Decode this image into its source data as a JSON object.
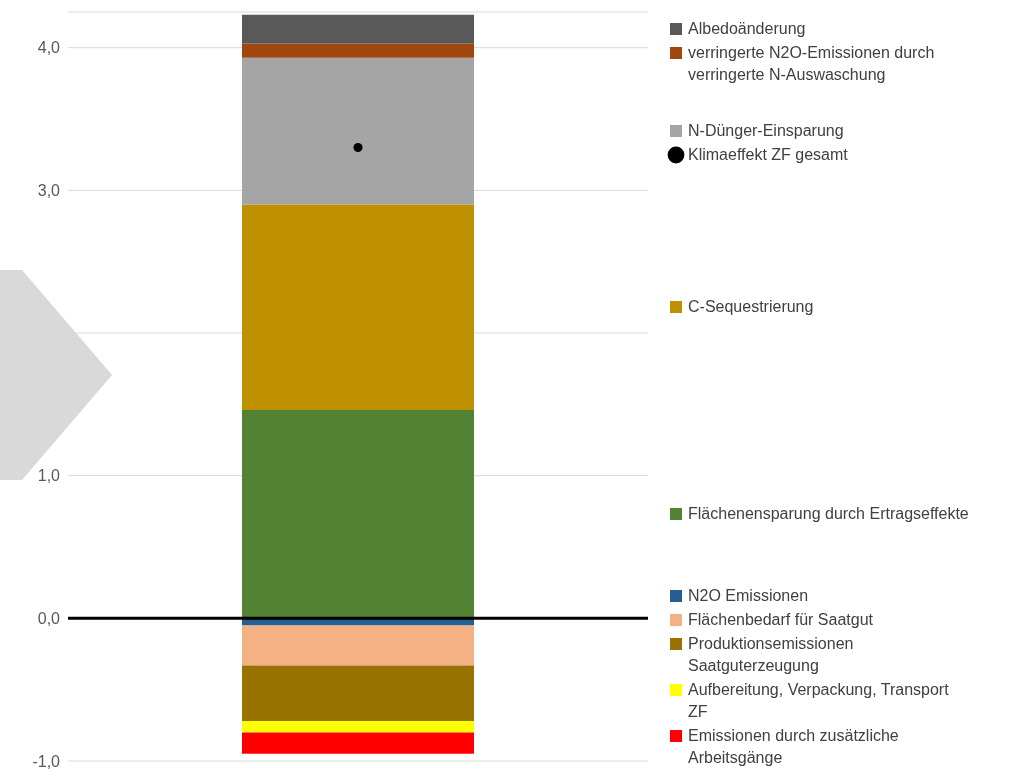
{
  "chart_data": {
    "type": "bar",
    "stacked": true,
    "categories": [
      null
    ],
    "series": [
      {
        "name": "Flächenensparung durch Ertragseffekte",
        "color": "#548235",
        "values": [
          1.46
        ]
      },
      {
        "name": "C-Sequestrierung",
        "color": "#bf9000",
        "values": [
          1.44
        ]
      },
      {
        "name": "N-Dünger-Einsparung",
        "color": "#a5a5a5",
        "values": [
          1.03
        ]
      },
      {
        "name": "verringerte N2O-Emissionen durch verringerte N-Auswaschung",
        "color": "#9e480e",
        "values": [
          0.1
        ]
      },
      {
        "name": "Albedoänderung",
        "color": "#595959",
        "values": [
          0.2
        ]
      },
      {
        "name": "N2O Emissionen",
        "color": "#255e91",
        "values": [
          -0.05
        ]
      },
      {
        "name": "Flächenbedarf für Saatgut",
        "color": "#f4b183",
        "values": [
          -0.28
        ]
      },
      {
        "name": "Produktionsemissionen Saatguterzeugung",
        "color": "#997300",
        "values": [
          -0.39
        ]
      },
      {
        "name": "Aufbereitung, Verpackung, Transport ZF",
        "color": "#ffff00",
        "values": [
          -0.08
        ]
      },
      {
        "name": "Emissionen durch zusätzliche Arbeitsgänge",
        "color": "#ff0000",
        "values": [
          -0.15
        ]
      },
      {
        "name": "Klimaeffekt ZF gesamt",
        "type": "scatter",
        "color": "#000000",
        "marker": "circle",
        "values": [
          3.3
        ]
      }
    ],
    "ylim": [
      -1,
      4.25
    ],
    "yticks": [
      {
        "value": -1,
        "label": "-1,0"
      },
      {
        "value": 0,
        "label": "0,0"
      },
      {
        "value": 1,
        "label": "1,0"
      },
      {
        "value": 2,
        "label": null
      },
      {
        "value": 3,
        "label": "3,0"
      },
      {
        "value": 4,
        "label": "4,0"
      }
    ],
    "grid": "y",
    "tick_labels": "y",
    "legend": "right",
    "ref_lines": [
      {
        "axis": "y",
        "value": 0,
        "color": "#000000"
      }
    ]
  }
}
